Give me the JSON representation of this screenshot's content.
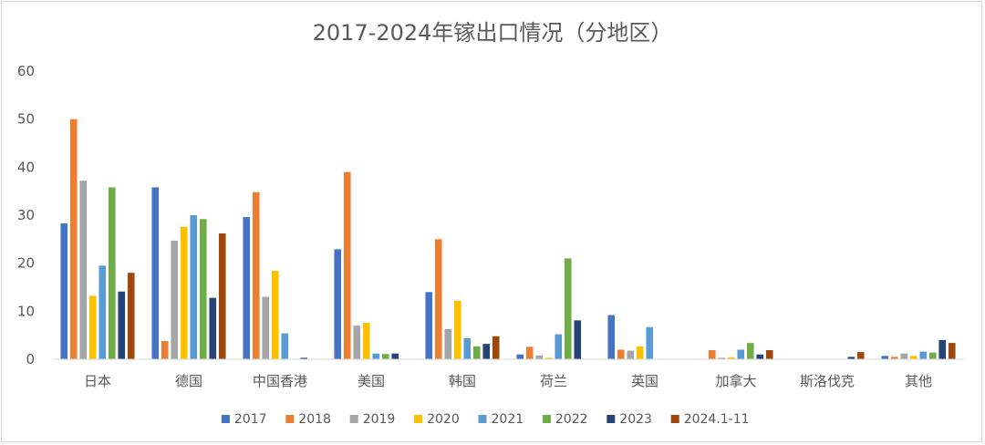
{
  "chart_data": {
    "type": "bar",
    "title": "2017-2024年镓出口情况（分地区）",
    "xlabel": "",
    "ylabel": "",
    "ylim": [
      0,
      60
    ],
    "yticks": [
      "0",
      "10",
      "20",
      "30",
      "40",
      "50",
      "60"
    ],
    "grid": false,
    "legend_position": "bottom",
    "categories": [
      "日本",
      "德国",
      "中国香港",
      "美国",
      "韩国",
      "荷兰",
      "英国",
      "加拿大",
      "斯洛伐克",
      "其他"
    ],
    "series": [
      {
        "name": "2017",
        "color": "#4472C4",
        "values": [
          28.3,
          35.8,
          29.6,
          22.9,
          14.0,
          1.0,
          9.2,
          0,
          0,
          0.7
        ]
      },
      {
        "name": "2018",
        "color": "#ED7D31",
        "values": [
          50.0,
          3.8,
          34.8,
          39.0,
          25.0,
          2.6,
          2.0,
          1.9,
          0,
          0.5
        ]
      },
      {
        "name": "2019",
        "color": "#A5A5A5",
        "values": [
          37.2,
          24.7,
          13.0,
          7.0,
          6.3,
          0.8,
          1.8,
          0.3,
          0,
          1.2
        ]
      },
      {
        "name": "2020",
        "color": "#FFC000",
        "values": [
          13.2,
          27.6,
          18.4,
          7.6,
          12.2,
          0.3,
          2.7,
          0.4,
          0,
          0.7
        ]
      },
      {
        "name": "2021",
        "color": "#5B9BD5",
        "values": [
          19.5,
          30.0,
          5.4,
          1.2,
          4.4,
          5.2,
          6.7,
          2.0,
          0,
          1.6
        ]
      },
      {
        "name": "2022",
        "color": "#70AD47",
        "values": [
          35.8,
          29.2,
          0,
          1.1,
          2.7,
          21.0,
          0,
          3.4,
          0,
          1.4
        ]
      },
      {
        "name": "2023",
        "color": "#264478",
        "values": [
          14.1,
          12.8,
          0.3,
          1.2,
          3.2,
          8.1,
          0,
          1.0,
          0.5,
          4.0
        ]
      },
      {
        "name": "2024.1-11",
        "color": "#9E480E",
        "values": [
          18.0,
          26.2,
          0,
          0,
          4.8,
          0,
          0,
          1.9,
          1.5,
          3.4
        ]
      }
    ]
  }
}
